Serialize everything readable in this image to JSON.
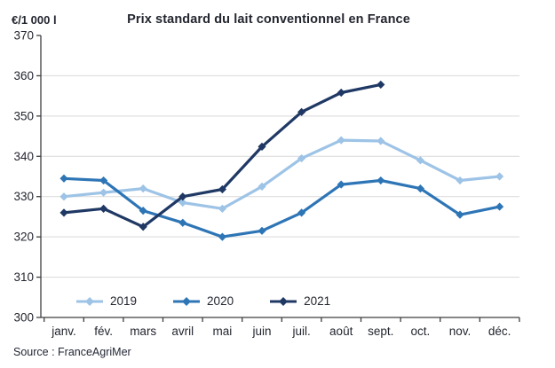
{
  "header": {
    "title": "Prix standard du lait conventionnel en France",
    "y_axis_unit": "€/1 000 l"
  },
  "source": {
    "label": "Source : FranceAgriMer"
  },
  "chart_data": {
    "type": "line",
    "title": "Prix standard du lait conventionnel en France",
    "xlabel": "",
    "ylabel": "€/1 000 l",
    "ylim": [
      300,
      370
    ],
    "y_ticks": [
      300,
      310,
      320,
      330,
      340,
      350,
      360,
      370
    ],
    "grid": "horizontal",
    "legend_position": "bottom",
    "marker": "diamond",
    "categories": [
      "janv.",
      "fév.",
      "mars",
      "avril",
      "mai",
      "juin",
      "juil.",
      "août",
      "sept.",
      "oct.",
      "nov.",
      "déc."
    ],
    "series": [
      {
        "name": "2019",
        "color": "#9DC3E6",
        "values": [
          330,
          331,
          332,
          328.5,
          327,
          332.5,
          339.5,
          344,
          343.8,
          339,
          334,
          335
        ]
      },
      {
        "name": "2020",
        "color": "#2E75B6",
        "values": [
          334.5,
          334,
          326.5,
          323.5,
          320,
          321.5,
          326,
          333,
          334,
          332,
          325.5,
          327.5
        ]
      },
      {
        "name": "2021",
        "color": "#1F3864",
        "values": [
          326,
          327,
          322.5,
          330,
          331.8,
          342.4,
          351,
          355.8,
          357.8,
          null,
          null,
          null
        ]
      }
    ],
    "style": {
      "grid_color": "#d9d9d9",
      "axis_color": "#3f3f3f",
      "text_color": "#23262f",
      "background": "#ffffff"
    }
  }
}
